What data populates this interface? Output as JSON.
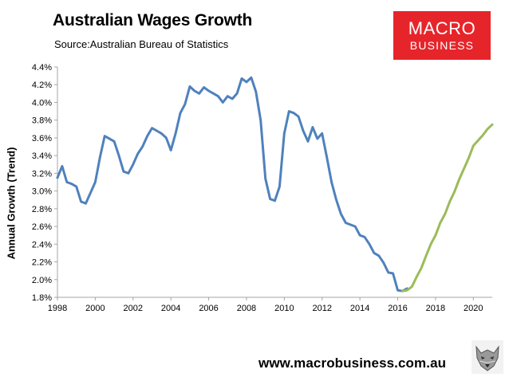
{
  "title": "Australian Wages Growth",
  "subtitle": "Source:Australian Bureau of Statistics",
  "logo": {
    "line1": "MACRO",
    "line2": "BUSINESS"
  },
  "footer_url": "www.macrobusiness.com.au",
  "colors": {
    "actual": "#4f81bd",
    "forecast": "#9bbb59",
    "logo_bg": "#e6252b",
    "axis": "#a6a6a6"
  },
  "chart_data": {
    "type": "line",
    "title": "Australian Wages Growth",
    "ylabel": "Annual Growth (Trend)",
    "xlabel": "",
    "xlim": [
      1998,
      2021
    ],
    "ylim": [
      1.8,
      4.4
    ],
    "x_ticks": [
      "1998",
      "2000",
      "2002",
      "2004",
      "2006",
      "2008",
      "2010",
      "2012",
      "2014",
      "2016",
      "2018",
      "2020"
    ],
    "y_ticks": [
      "1.8%",
      "2.0%",
      "2.2%",
      "2.4%",
      "2.6%",
      "2.8%",
      "3.0%",
      "3.2%",
      "3.4%",
      "3.6%",
      "3.8%",
      "4.0%",
      "4.2%",
      "4.4%"
    ],
    "grid": false,
    "legend": "none",
    "series": [
      {
        "x": [
          1998.0,
          1998.25,
          1998.5,
          1998.75,
          1999.0,
          1999.25,
          1999.5,
          1999.75,
          2000.0,
          2000.25,
          2000.5,
          2000.75,
          2001.0,
          2001.25,
          2001.5,
          2001.75,
          2002.0,
          2002.25,
          2002.5,
          2002.75,
          2003.0,
          2003.25,
          2003.5,
          2003.75,
          2004.0,
          2004.25,
          2004.5,
          2004.75,
          2005.0,
          2005.25,
          2005.5,
          2005.75,
          2006.0,
          2006.25,
          2006.5,
          2006.75,
          2007.0,
          2007.25,
          2007.5,
          2007.75,
          2008.0,
          2008.25,
          2008.5,
          2008.75,
          2009.0,
          2009.25,
          2009.5,
          2009.75,
          2010.0,
          2010.25,
          2010.5,
          2010.75,
          2011.0,
          2011.25,
          2011.5,
          2011.75,
          2012.0,
          2012.25,
          2012.5,
          2012.75,
          2013.0,
          2013.25,
          2013.5,
          2013.75,
          2014.0,
          2014.25,
          2014.5,
          2014.75,
          2015.0,
          2015.25,
          2015.5,
          2015.75,
          2016.0,
          2016.25,
          2016.5
        ],
        "values": [
          3.15,
          3.28,
          3.1,
          3.08,
          3.05,
          2.88,
          2.86,
          2.98,
          3.1,
          3.38,
          3.62,
          3.59,
          3.56,
          3.4,
          3.22,
          3.2,
          3.3,
          3.42,
          3.5,
          3.62,
          3.71,
          3.68,
          3.65,
          3.6,
          3.46,
          3.65,
          3.88,
          3.98,
          4.18,
          4.13,
          4.1,
          4.17,
          4.13,
          4.1,
          4.07,
          4.0,
          4.07,
          4.04,
          4.1,
          4.27,
          4.23,
          4.28,
          4.12,
          3.8,
          3.14,
          2.91,
          2.89,
          3.05,
          3.65,
          3.9,
          3.88,
          3.84,
          3.68,
          3.56,
          3.72,
          3.59,
          3.65,
          3.38,
          3.1,
          2.9,
          2.74,
          2.64,
          2.62,
          2.6,
          2.5,
          2.48,
          2.4,
          2.3,
          2.27,
          2.19,
          2.08,
          2.07,
          1.88,
          1.87,
          1.9
        ]
      },
      {
        "x": [
          2016.25,
          2016.5,
          2016.75,
          2017.0,
          2017.25,
          2017.5,
          2017.75,
          2018.0,
          2018.25,
          2018.5,
          2018.75,
          2019.0,
          2019.25,
          2019.5,
          2019.75,
          2020.0,
          2020.25,
          2020.5,
          2020.75,
          2021.0
        ],
        "values": [
          1.87,
          1.88,
          1.92,
          2.03,
          2.13,
          2.27,
          2.4,
          2.5,
          2.64,
          2.74,
          2.88,
          2.99,
          3.13,
          3.25,
          3.37,
          3.51,
          3.57,
          3.63,
          3.7,
          3.75
        ]
      }
    ]
  }
}
